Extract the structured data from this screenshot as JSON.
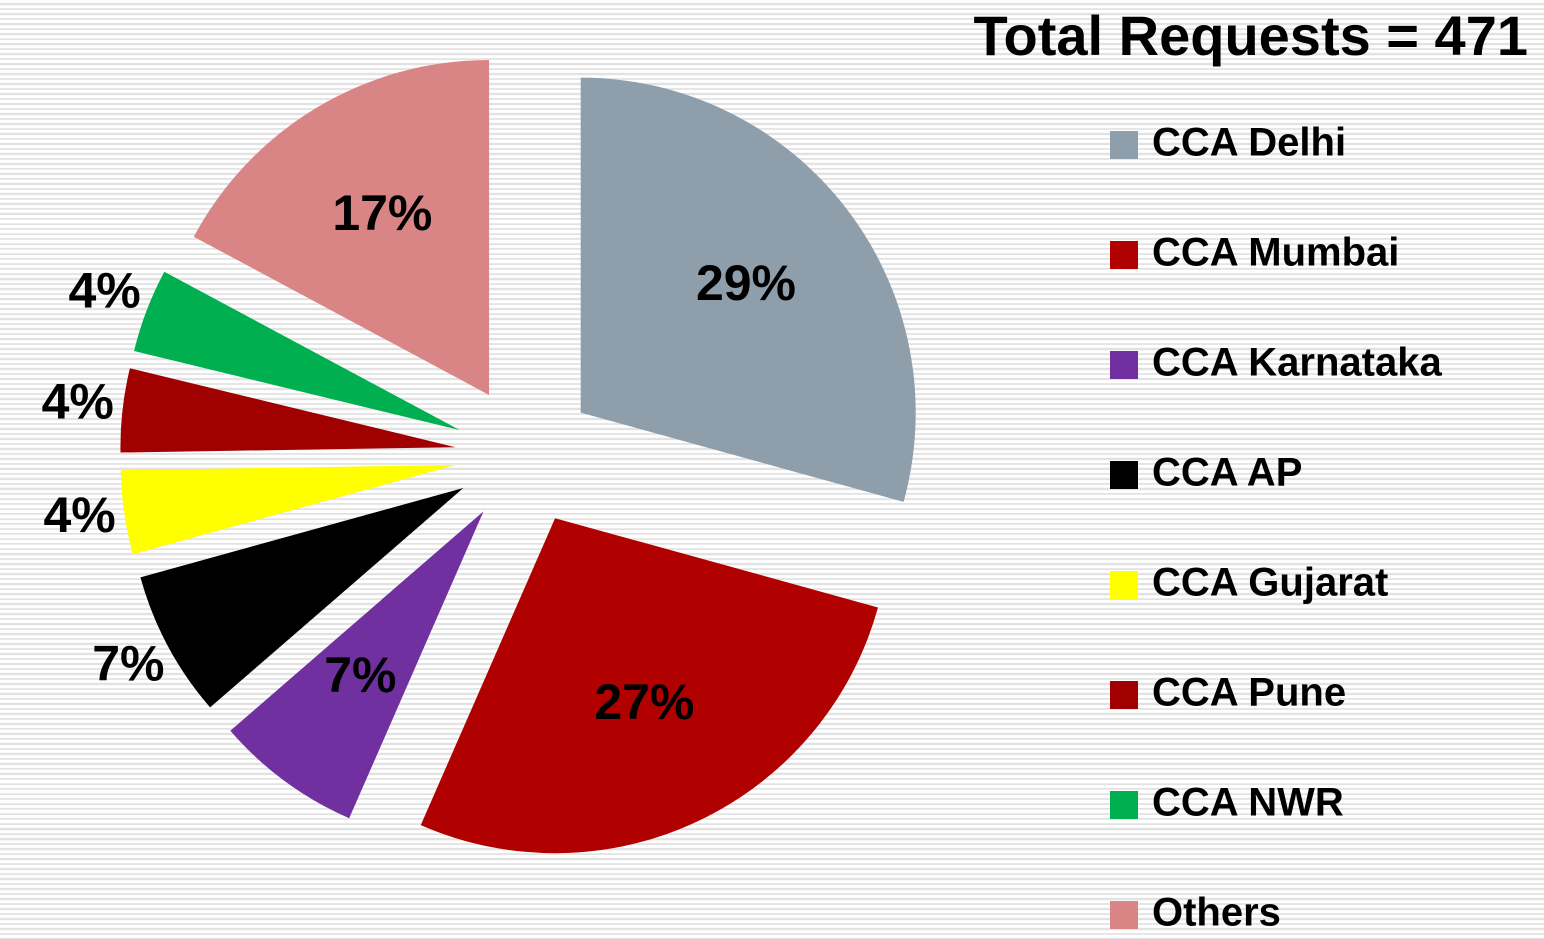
{
  "chart_data": {
    "type": "pie",
    "title": "Total Requests = 471",
    "categories": [
      "CCA Delhi",
      "CCA Mumbai",
      "CCA Karnataka",
      "CCA AP",
      "CCA Gujarat",
      "CCA Pune",
      "CCA NWR",
      "Others"
    ],
    "values": [
      29,
      27,
      7,
      7,
      4,
      4,
      4,
      17
    ],
    "value_labels": [
      "29%",
      "27%",
      "7%",
      "7%",
      "4%",
      "4%",
      "4%",
      "17%"
    ],
    "colors": [
      "#8f9eab",
      "#b00000",
      "#7030a0",
      "#000000",
      "#ffff00",
      "#a00000",
      "#00b050",
      "#d98585"
    ],
    "legend": "right"
  }
}
